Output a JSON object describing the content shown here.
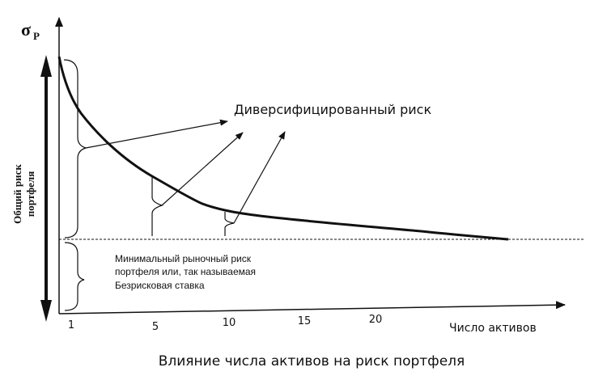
{
  "figure": {
    "sigma_symbol": "σ",
    "sigma_subscript": "P",
    "y_axis_label_line1": "Общий риск",
    "y_axis_label_line2": "портфеля",
    "x_axis_label": "Число активов",
    "x_ticks": [
      "1",
      "5",
      "10",
      "15",
      "20"
    ],
    "diversified_risk_label": "Диверсифицированный риск",
    "market_risk_line1": "Минимальный рыночный риск",
    "market_risk_line2": "портфеля или, так называемая",
    "market_risk_line3": "Безрисковая ставка",
    "caption": "Влияние числа активов на риск портфеля"
  }
}
